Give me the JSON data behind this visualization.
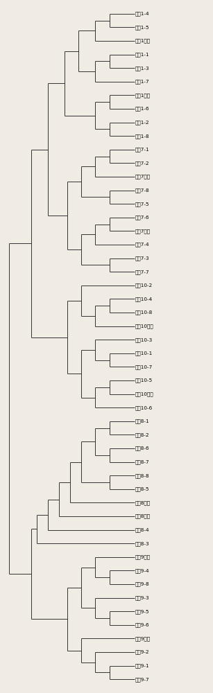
{
  "labels": [
    "家系1-4",
    "家系1-5",
    "家系1父本",
    "家系1-1",
    "家系1-3",
    "家系1-7",
    "家系1母本",
    "家系1-6",
    "家系1-2",
    "家系1-8",
    "家系7-1",
    "家系7-2",
    "家系7父本",
    "家系7-8",
    "家系7-5",
    "家系7-6",
    "家系7母本",
    "家系7-4",
    "家系7-3",
    "家系7-7",
    "家系10-2",
    "家系10-4",
    "家系10-8",
    "家系10父本",
    "家系10-3",
    "家系10-1",
    "家系10-7",
    "家系10-5",
    "家系10母本",
    "家系10-6",
    "家系8-1",
    "家系8-2",
    "家系8-6",
    "家系8-7",
    "家系8-8",
    "家系8-5",
    "家系8母本",
    "家系8父本",
    "家系8-4",
    "家系8-3",
    "家系9母本",
    "家系9-4",
    "家系9-8",
    "家系9-3",
    "家系9-5",
    "家系9-6",
    "家系9父本",
    "家系9-2",
    "家系9-1",
    "家系9-7"
  ],
  "line_color": "#333333",
  "bg_color": "#f0ece4",
  "label_fontsize": 5.2,
  "fig_width": 3.07,
  "fig_height": 10.0,
  "dpi": 100
}
